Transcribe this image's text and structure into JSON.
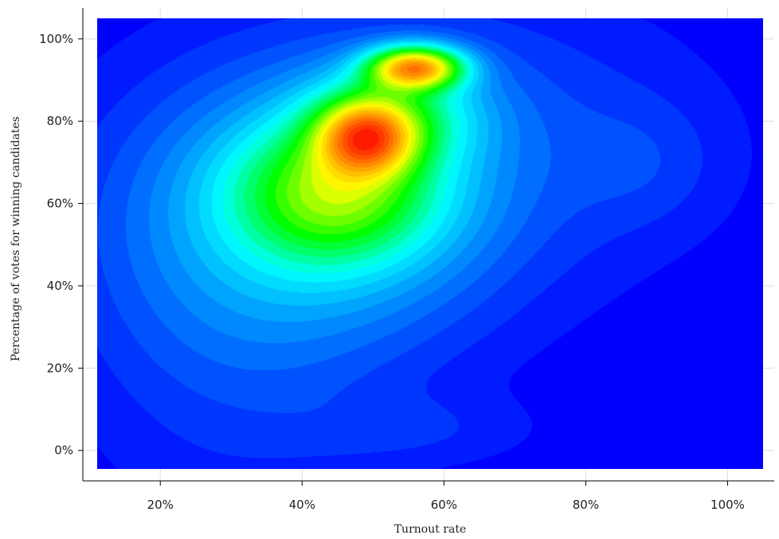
{
  "chart_data": {
    "type": "heatmap",
    "title": "",
    "xlabel": "Turnout rate",
    "ylabel": "Percentage of votes for winning candidates",
    "xlim": [
      0.111,
      1.05
    ],
    "ylim": [
      -0.045,
      1.05
    ],
    "x_ticks": [
      {
        "value": 0.2,
        "label": "20%"
      },
      {
        "value": 0.4,
        "label": "40%"
      },
      {
        "value": 0.6,
        "label": "60%"
      },
      {
        "value": 0.8,
        "label": "80%"
      },
      {
        "value": 1.0,
        "label": "100%"
      }
    ],
    "y_ticks": [
      {
        "value": 0.0,
        "label": "0%"
      },
      {
        "value": 0.2,
        "label": "20%"
      },
      {
        "value": 0.4,
        "label": "40%"
      },
      {
        "value": 0.6,
        "label": "60%"
      },
      {
        "value": 0.8,
        "label": "80%"
      },
      {
        "value": 1.0,
        "label": "100%"
      }
    ],
    "grid": true,
    "colormap": [
      "#0000ff",
      "#0080ff",
      "#00ffff",
      "#00ff00",
      "#ffff00",
      "#ff8000",
      "#ff0000"
    ],
    "density_components": [
      {
        "x": 0.56,
        "y": 0.93,
        "sx": 0.045,
        "sy": 0.035,
        "w": 1.0
      },
      {
        "x": 0.49,
        "y": 0.76,
        "sx": 0.045,
        "sy": 0.06,
        "w": 0.78
      },
      {
        "x": 0.45,
        "y": 0.63,
        "sx": 0.1,
        "sy": 0.12,
        "w": 0.55
      },
      {
        "x": 0.53,
        "y": 0.82,
        "sx": 0.08,
        "sy": 0.08,
        "w": 0.35
      },
      {
        "x": 0.4,
        "y": 0.55,
        "sx": 0.17,
        "sy": 0.22,
        "w": 0.22
      },
      {
        "x": 0.6,
        "y": 0.75,
        "sx": 0.22,
        "sy": 0.22,
        "w": 0.1
      },
      {
        "x": 0.3,
        "y": 0.3,
        "sx": 0.14,
        "sy": 0.3,
        "w": 0.06
      },
      {
        "x": 0.55,
        "y": 0.05,
        "sx": 0.12,
        "sy": 0.06,
        "w": 0.04
      },
      {
        "x": 0.88,
        "y": 0.7,
        "sx": 0.07,
        "sy": 0.1,
        "w": 0.04
      }
    ]
  }
}
